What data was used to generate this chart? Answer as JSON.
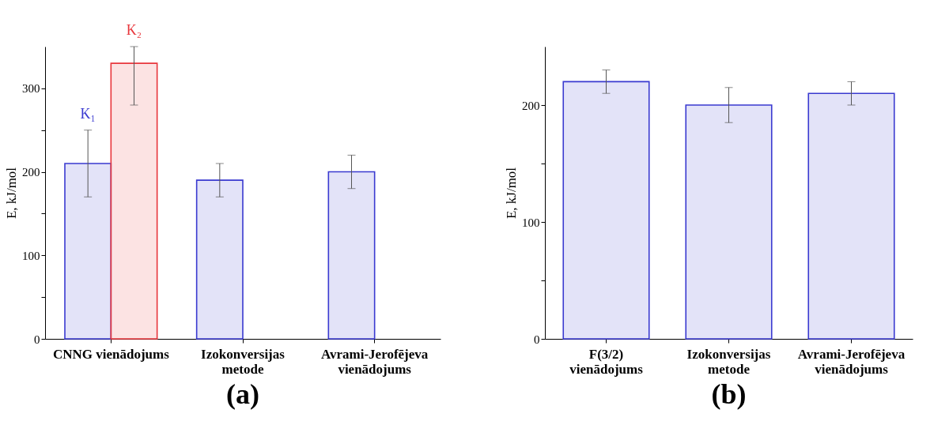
{
  "chart_data": [
    {
      "type": "bar",
      "title": "(a)",
      "ylabel": "E, kJ/mol",
      "categories": [
        "CNNG vienādojums",
        "Izokonversijas\nmetode",
        "Avrami-Jerofējeva\nvienādojums"
      ],
      "series": [
        {
          "name": "K₁",
          "color": "#3a3ad0",
          "values": [
            210,
            190,
            200
          ],
          "errors": [
            40,
            20,
            20
          ]
        },
        {
          "name": "K₂",
          "color": "#e8363c",
          "values": [
            330,
            null,
            null
          ],
          "errors": [
            [
              280,
              350
            ],
            null,
            null
          ]
        }
      ],
      "ylim": [
        0,
        350
      ],
      "yticks": [
        0,
        {
          "value": 50,
          "label": null
        },
        100,
        {
          "value": 150,
          "label": null
        },
        200,
        {
          "value": 250,
          "label": null
        },
        300
      ],
      "legend": false
    },
    {
      "type": "bar",
      "title": "(b)",
      "ylabel": "E, kJ/mol",
      "categories": [
        "F(3/2)\nvienādojums",
        "Izokonversijas\nmetode",
        "Avrami-Jerofējeva\nvienādojums"
      ],
      "color": "#3a3ad0",
      "values": [
        220,
        200,
        210
      ],
      "errors": [
        10,
        15,
        10
      ],
      "ylim": [
        0,
        250
      ],
      "yticks": [
        0,
        {
          "value": 50,
          "label": null
        },
        100,
        {
          "value": 150,
          "label": null
        },
        200
      ]
    }
  ]
}
